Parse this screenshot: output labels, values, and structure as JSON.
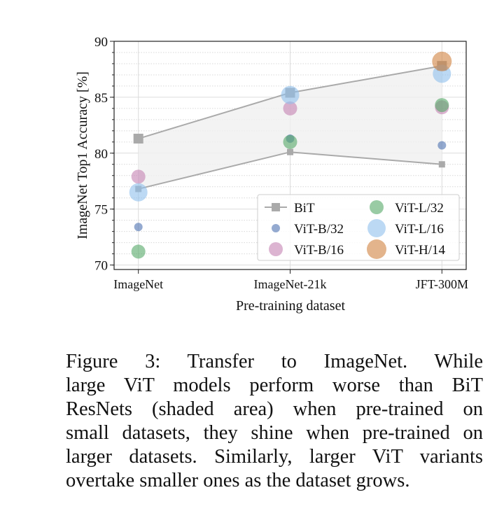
{
  "chart_data": {
    "type": "scatter",
    "xlabel": "Pre-training dataset",
    "ylabel": "ImageNet Top1 Accuracy [%]",
    "categories": [
      "ImageNet",
      "ImageNet-21k",
      "JFT-300M"
    ],
    "ylim": [
      69.6,
      90
    ],
    "yticks": [
      70,
      75,
      80,
      85,
      90
    ],
    "grid": true,
    "legend_position": "bottom-right",
    "bit": {
      "name": "BiT",
      "color": "#aaaaaa",
      "upper": [
        81.3,
        85.4,
        87.8
      ],
      "lower": [
        76.8,
        80.1,
        79.0
      ]
    },
    "series": [
      {
        "name": "ViT-B/32",
        "color": "#4c72b0",
        "size": 6,
        "values": [
          73.4,
          81.3,
          80.7
        ]
      },
      {
        "name": "ViT-B/16",
        "color": "#c582b2",
        "size": 10,
        "values": [
          77.9,
          84.0,
          84.1
        ]
      },
      {
        "name": "ViT-L/32",
        "color": "#55a868",
        "size": 10,
        "values": [
          71.2,
          81.0,
          84.3
        ]
      },
      {
        "name": "ViT-L/16",
        "color": "#8fbfec",
        "size": 13,
        "values": [
          76.5,
          85.2,
          87.1
        ]
      },
      {
        "name": "ViT-H/14",
        "color": "#d0823f",
        "size": 14,
        "values": [
          null,
          null,
          88.2
        ]
      }
    ]
  },
  "caption": {
    "lines": [
      "Figure 3:  Transfer to ImageNet.  While",
      "large ViT models perform worse than BiT",
      "ResNets (shaded area) when pre-trained on",
      "small datasets, they shine when pre-trained on",
      "larger datasets.  Similarly, larger ViT variants",
      "overtake smaller ones as the dataset grows."
    ]
  }
}
